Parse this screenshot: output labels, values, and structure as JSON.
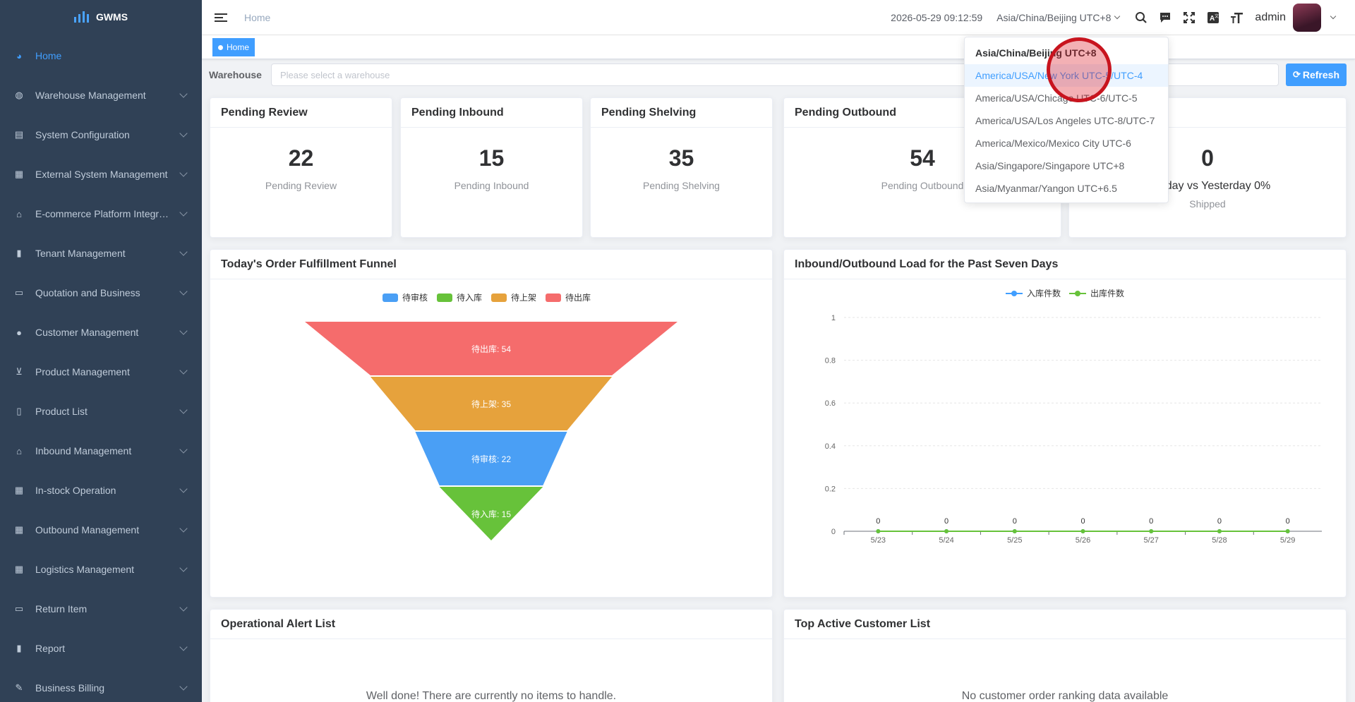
{
  "app": {
    "name": "GWMS"
  },
  "sidebar": {
    "items": [
      {
        "label": "Home",
        "icon": "dashboard-icon",
        "active": true
      },
      {
        "label": "Warehouse Management",
        "icon": "globe-icon"
      },
      {
        "label": "System Configuration",
        "icon": "config-icon"
      },
      {
        "label": "External System Management",
        "icon": "grid-icon"
      },
      {
        "label": "E-commerce Platform Integr…",
        "icon": "store-icon"
      },
      {
        "label": "Tenant Management",
        "icon": "bar-chart-icon"
      },
      {
        "label": "Quotation and Business",
        "icon": "document-icon"
      },
      {
        "label": "Customer Management",
        "icon": "user-icon"
      },
      {
        "label": "Product Management",
        "icon": "cart-icon"
      },
      {
        "label": "Product List",
        "icon": "book-icon"
      },
      {
        "label": "Inbound Management",
        "icon": "home-icon"
      },
      {
        "label": "In-stock Operation",
        "icon": "table-icon"
      },
      {
        "label": "Outbound Management",
        "icon": "grid-icon"
      },
      {
        "label": "Logistics Management",
        "icon": "grid-icon"
      },
      {
        "label": "Return Item",
        "icon": "document-icon"
      },
      {
        "label": "Report",
        "icon": "bar-chart-icon"
      },
      {
        "label": "Business Billing",
        "icon": "edit-icon"
      }
    ]
  },
  "header": {
    "breadcrumb": "Home",
    "datetime": "2026-05-29 09:12:59",
    "timezone": "Asia/China/Beijing UTC+8",
    "user": "admin"
  },
  "tags": {
    "active": "Home"
  },
  "filter": {
    "label": "Warehouse",
    "placeholder": "Please select a warehouse",
    "refresh_label": "Refresh"
  },
  "stats": {
    "pending_review": {
      "title": "Pending Review",
      "value": "22",
      "sub": "Pending Review"
    },
    "pending_inbound": {
      "title": "Pending Inbound",
      "value": "15",
      "sub": "Pending Inbound"
    },
    "pending_shelving": {
      "title": "Pending Shelving",
      "value": "35",
      "sub": "Pending Shelving"
    },
    "pending_outbound": {
      "title": "Pending Outbound",
      "value": "54",
      "sub": "Pending Outbound"
    },
    "shipped": {
      "value": "0",
      "compare": "day vs Yesterday 0%",
      "sub": "Shipped"
    }
  },
  "timezone_dropdown": {
    "options": [
      "Asia/China/Beijing UTC+8",
      "America/USA/New York UTC-5/UTC-4",
      "America/USA/Chicago UTC-6/UTC-5",
      "America/USA/Los Angeles UTC-8/UTC-7",
      "America/Mexico/Mexico City UTC-6",
      "Asia/Singapore/Singapore UTC+8",
      "Asia/Myanmar/Yangon UTC+6.5"
    ],
    "selected_index": 0,
    "hovered_index": 1
  },
  "panels": {
    "funnel_title": "Today's Order Fulfillment Funnel",
    "load_title": "Inbound/Outbound Load for the Past Seven Days",
    "alert_title": "Operational Alert List",
    "alert_empty": "Well done! There are currently no items to handle.",
    "customer_title": "Top Active Customer List",
    "customer_empty": "No customer order ranking data available"
  },
  "colors": {
    "accent": "#409eff",
    "sidebar_bg": "#304156"
  },
  "chart_data": [
    {
      "type": "funnel",
      "legend": [
        "待审核",
        "待入库",
        "待上架",
        "待出库"
      ],
      "legend_colors": [
        "#4a9ff5",
        "#67c23a",
        "#e6a23c",
        "#f56c6c"
      ],
      "stages": [
        {
          "name": "待出库",
          "value": 54,
          "color": "#f56c6c"
        },
        {
          "name": "待上架",
          "value": 35,
          "color": "#e6a23c"
        },
        {
          "name": "待审核",
          "value": 22,
          "color": "#4a9ff5"
        },
        {
          "name": "待入库",
          "value": 15,
          "color": "#67c23a"
        }
      ]
    },
    {
      "type": "line",
      "categories": [
        "5/23",
        "5/24",
        "5/25",
        "5/26",
        "5/27",
        "5/28",
        "5/29"
      ],
      "series": [
        {
          "name": "入库件数",
          "values": [
            0,
            0,
            0,
            0,
            0,
            0,
            0
          ],
          "color": "#409eff"
        },
        {
          "name": "出库件数",
          "values": [
            0,
            0,
            0,
            0,
            0,
            0,
            0
          ],
          "color": "#67c23a"
        }
      ],
      "ylim": [
        0,
        1
      ],
      "yticks": [
        "0",
        "0.2",
        "0.4",
        "0.6",
        "0.8",
        "1"
      ],
      "legend_position": "top-center",
      "grid": true
    }
  ]
}
